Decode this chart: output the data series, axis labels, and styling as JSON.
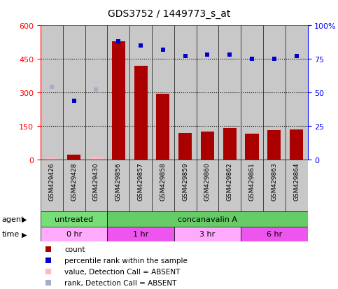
{
  "title": "GDS3752 / 1449773_s_at",
  "samples": [
    "GSM429426",
    "GSM429428",
    "GSM429430",
    "GSM429856",
    "GSM429857",
    "GSM429858",
    "GSM429859",
    "GSM429860",
    "GSM429862",
    "GSM429861",
    "GSM429863",
    "GSM429864"
  ],
  "count_values": [
    10,
    22,
    12,
    530,
    420,
    295,
    120,
    125,
    140,
    115,
    130,
    135
  ],
  "count_absent": [
    true,
    false,
    true,
    false,
    false,
    false,
    false,
    false,
    false,
    false,
    false,
    false
  ],
  "rank_pct": [
    54,
    44,
    52,
    88,
    85,
    82,
    77,
    78,
    78,
    75,
    75,
    77
  ],
  "rank_absent": [
    true,
    false,
    true,
    false,
    false,
    false,
    false,
    false,
    false,
    false,
    false,
    false
  ],
  "ylim_left": [
    0,
    600
  ],
  "ylim_right": [
    0,
    100
  ],
  "yticks_left": [
    0,
    150,
    300,
    450,
    600
  ],
  "yticks_right": [
    0,
    25,
    50,
    75,
    100
  ],
  "bar_color": "#AA0000",
  "bar_absent_color": "#FFB6C1",
  "dot_color": "#0000CC",
  "dot_absent_color": "#AAAACC",
  "bg_color": "#C8C8C8",
  "agent_untreated_color": "#77DD77",
  "agent_conc_color": "#66CC66",
  "time_colors": [
    "#FFAAFF",
    "#EE55EE",
    "#FFAAFF",
    "#EE55EE"
  ],
  "time_labels": [
    "0 hr",
    "1 hr",
    "3 hr",
    "6 hr"
  ],
  "legend_items": [
    {
      "label": "count",
      "color": "#AA0000"
    },
    {
      "label": "percentile rank within the sample",
      "color": "#0000CC"
    },
    {
      "label": "value, Detection Call = ABSENT",
      "color": "#FFB6C1"
    },
    {
      "label": "rank, Detection Call = ABSENT",
      "color": "#AAAACC"
    }
  ]
}
